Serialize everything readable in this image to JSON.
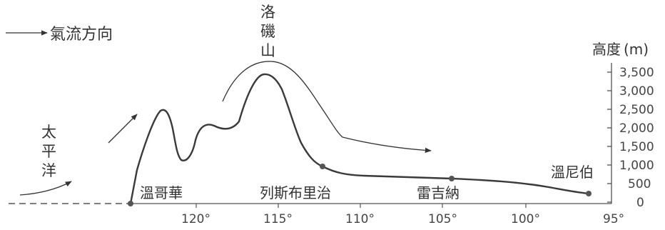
{
  "legend": {
    "label": "氣流方向"
  },
  "ocean": {
    "chars": [
      "太",
      "平",
      "洋"
    ]
  },
  "mountain": {
    "chars": [
      "洛",
      "磯",
      "山"
    ]
  },
  "cities": {
    "vancouver": "溫哥華",
    "calgary": "列斯布里治",
    "regina": "雷吉納",
    "winnipeg": "溫尼伯"
  },
  "y_axis": {
    "title": "高度",
    "unit": "(m)",
    "ticks": [
      "3,500",
      "3,000",
      "2,500",
      "2,000",
      "1,500",
      "1,000",
      "500",
      "0"
    ]
  },
  "x_axis": {
    "ticks": [
      "120°",
      "115°",
      "110°",
      "105°",
      "100°",
      "95°"
    ]
  },
  "colors": {
    "ink": "#333333",
    "profile": "#3a3a3a",
    "dot": "#555555"
  }
}
